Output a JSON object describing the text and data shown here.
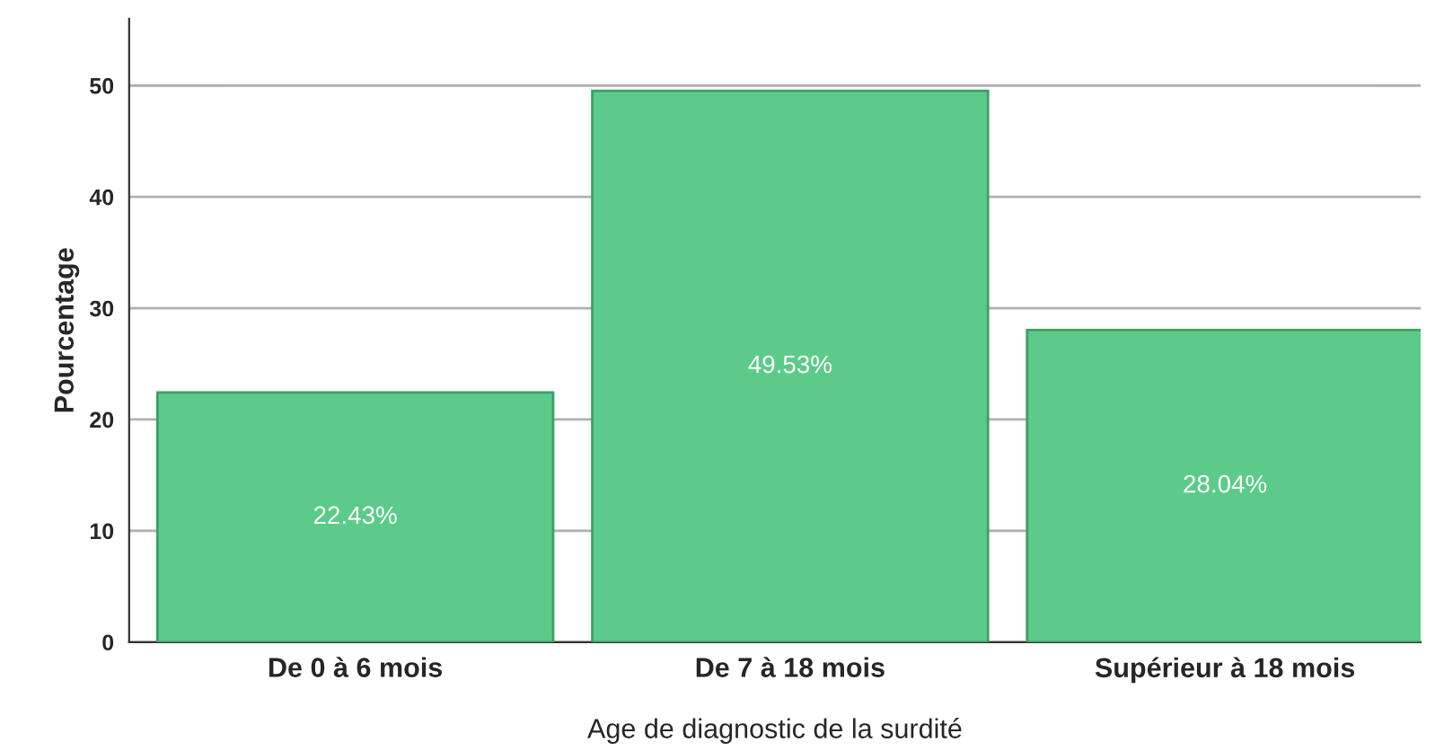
{
  "chart_data": {
    "type": "bar",
    "xlabel": "Age de diagnostic de la surdité",
    "ylabel": "Pourcentage",
    "categories": [
      "De 0 à 6 mois",
      "De 7 à 18 mois",
      "Supérieur à 18 mois"
    ],
    "values": [
      22.43,
      49.53,
      28.04
    ],
    "value_labels": [
      "22.43%",
      "49.53%",
      "28.04%"
    ],
    "color": "#5ccb8a",
    "ylim": [
      0,
      56
    ],
    "yticks": [
      0,
      10,
      20,
      30,
      40,
      50
    ],
    "grid": "y"
  }
}
